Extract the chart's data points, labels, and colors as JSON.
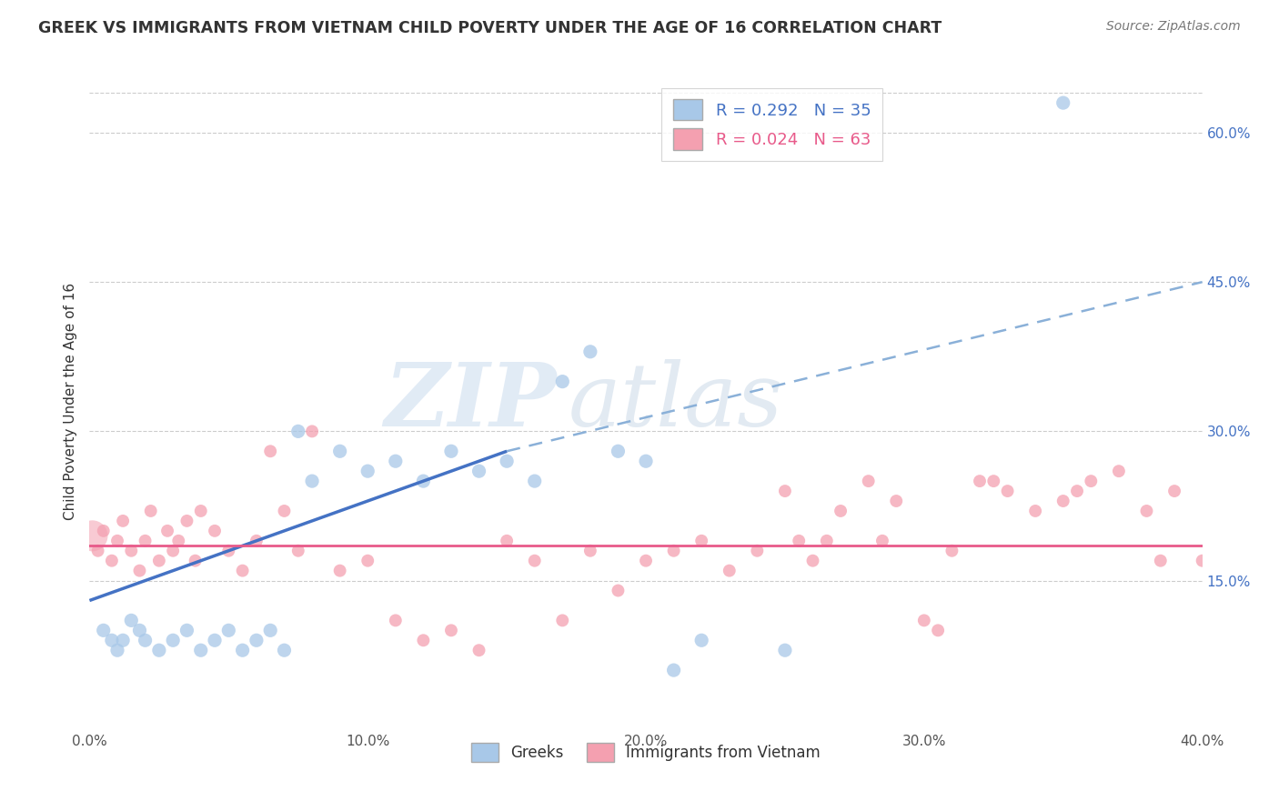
{
  "title": "GREEK VS IMMIGRANTS FROM VIETNAM CHILD POVERTY UNDER THE AGE OF 16 CORRELATION CHART",
  "source": "Source: ZipAtlas.com",
  "ylabel": "Child Poverty Under the Age of 16",
  "watermark_zip": "ZIP",
  "watermark_atlas": "atlas",
  "legend_r1": "R = 0.292   N = 35",
  "legend_r2": "R = 0.024   N = 63",
  "legend_label1": "Greeks",
  "legend_label2": "Immigrants from Vietnam",
  "color_greek": "#A8C8E8",
  "color_vietnam": "#F4A0B0",
  "trendline_greek": "#4472C4",
  "trendline_vietnam": "#E85A8A",
  "trendline_dashed": "#8AB0D8",
  "xmin": 0.0,
  "xmax": 40.0,
  "ymin": 0.0,
  "ymax": 66.0,
  "ytick_right": [
    15.0,
    30.0,
    45.0,
    60.0
  ],
  "xticks": [
    0.0,
    10.0,
    20.0,
    30.0,
    40.0
  ],
  "grid_color": "#CCCCCC",
  "background_color": "#FFFFFF",
  "greek_x": [
    0.5,
    0.8,
    1.0,
    1.2,
    1.5,
    1.8,
    2.0,
    2.5,
    3.0,
    3.5,
    4.0,
    4.5,
    5.0,
    5.5,
    6.0,
    6.5,
    7.0,
    7.5,
    8.0,
    9.0,
    10.0,
    11.0,
    12.0,
    13.0,
    14.0,
    15.0,
    16.0,
    17.0,
    18.0,
    19.0,
    20.0,
    21.0,
    22.0,
    25.0,
    35.0
  ],
  "greek_y": [
    10.0,
    9.0,
    8.0,
    9.0,
    11.0,
    10.0,
    9.0,
    8.0,
    9.0,
    10.0,
    8.0,
    9.0,
    10.0,
    8.0,
    9.0,
    10.0,
    8.0,
    30.0,
    25.0,
    28.0,
    26.0,
    27.0,
    25.0,
    28.0,
    26.0,
    27.0,
    25.0,
    35.0,
    38.0,
    28.0,
    27.0,
    6.0,
    9.0,
    8.0,
    63.0
  ],
  "vietnam_x": [
    0.3,
    0.5,
    0.8,
    1.0,
    1.2,
    1.5,
    1.8,
    2.0,
    2.2,
    2.5,
    2.8,
    3.0,
    3.2,
    3.5,
    3.8,
    4.0,
    4.5,
    5.0,
    5.5,
    6.0,
    6.5,
    7.0,
    7.5,
    8.0,
    9.0,
    10.0,
    11.0,
    12.0,
    13.0,
    14.0,
    15.0,
    16.0,
    17.0,
    18.0,
    19.0,
    20.0,
    21.0,
    22.0,
    23.0,
    24.0,
    25.0,
    26.0,
    27.0,
    28.0,
    29.0,
    30.0,
    31.0,
    32.0,
    33.0,
    34.0,
    35.0,
    36.0,
    37.0,
    38.0,
    39.0,
    40.0,
    25.5,
    26.5,
    28.5,
    30.5,
    32.5,
    35.5,
    38.5
  ],
  "vietnam_y": [
    18.0,
    20.0,
    17.0,
    19.0,
    21.0,
    18.0,
    16.0,
    19.0,
    22.0,
    17.0,
    20.0,
    18.0,
    19.0,
    21.0,
    17.0,
    22.0,
    20.0,
    18.0,
    16.0,
    19.0,
    28.0,
    22.0,
    18.0,
    30.0,
    16.0,
    17.0,
    11.0,
    9.0,
    10.0,
    8.0,
    19.0,
    17.0,
    11.0,
    18.0,
    14.0,
    17.0,
    18.0,
    19.0,
    16.0,
    18.0,
    24.0,
    17.0,
    22.0,
    25.0,
    23.0,
    11.0,
    18.0,
    25.0,
    24.0,
    22.0,
    23.0,
    25.0,
    26.0,
    22.0,
    24.0,
    17.0,
    19.0,
    19.0,
    19.0,
    10.0,
    25.0,
    24.0,
    17.0
  ],
  "trendline_greek_x0": 0.0,
  "trendline_greek_y0": 13.0,
  "trendline_greek_x1": 15.0,
  "trendline_greek_y1": 28.0,
  "trendline_dashed_x0": 15.0,
  "trendline_dashed_y0": 28.0,
  "trendline_dashed_x1": 40.0,
  "trendline_dashed_y1": 45.0,
  "trendline_vietnam_x0": 0.0,
  "trendline_vietnam_y0": 18.5,
  "trendline_vietnam_x1": 40.0,
  "trendline_vietnam_y1": 18.5
}
